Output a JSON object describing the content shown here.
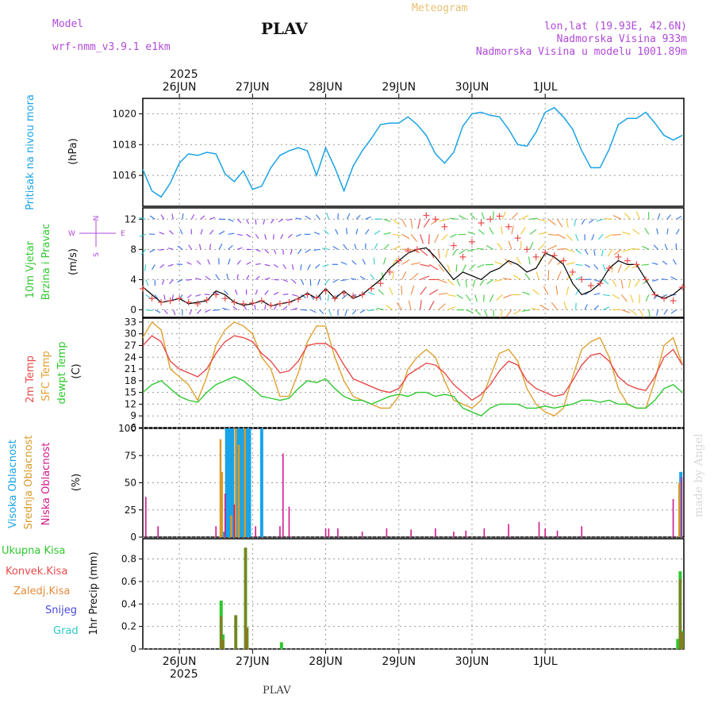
{
  "header": {
    "model_label": "Model",
    "model_name": "wrf-nmm_v3.9.1 e1km",
    "station": "PLAV",
    "meteogram": "Meteogram",
    "lonlat": "lon,lat (19.93E, 42.6N)",
    "altitude": "Nadmorska Visina 933m",
    "altitude_model": "Nadmorska Visina u modelu 1001.89m",
    "footer_station": "PLAV",
    "watermark": "made by Angel"
  },
  "colors": {
    "pressure": "#1aa3e6",
    "temp2m": "#e84b4b",
    "sfc_temp": "#e0a030",
    "dewpoint": "#2ec82e",
    "high_cloud": "#1aa3e6",
    "mid_cloud": "#d99a2a",
    "low_cloud": "#d01a8c",
    "total_precip": "#2ec82e",
    "conv_precip": "#e84b4b",
    "frozen_precip": "#e88a3a",
    "snow": "#4a4ad8",
    "hail": "#30c8c8",
    "label_purple": "#b04ad8"
  },
  "time_axis": {
    "year": "2025",
    "days": [
      "26JUN",
      "27JUN",
      "28JUN",
      "29JUN",
      "30JUN",
      "1JUL"
    ]
  },
  "chart_data": [
    {
      "type": "line",
      "name": "pressure",
      "ylabel": "(hPa)",
      "side_labels": [
        "Pritisak na nivou mora"
      ],
      "ylim": [
        1014,
        1021
      ],
      "yticks": [
        "1016",
        "1018",
        "1020"
      ],
      "x_hours": [
        0,
        3,
        6,
        9,
        12,
        15,
        18,
        21,
        24,
        27,
        30,
        33,
        36,
        39,
        42,
        45,
        48,
        51,
        54,
        57,
        60,
        63,
        66,
        69,
        72,
        75,
        78,
        81,
        84,
        87,
        90,
        93,
        96,
        99,
        102,
        105,
        108,
        111,
        114,
        117,
        120,
        123,
        126,
        129,
        132,
        135,
        138,
        141,
        144,
        147,
        150,
        153,
        156,
        159,
        162,
        165,
        168,
        171,
        174,
        177
      ],
      "values": [
        1016.4,
        1015.0,
        1014.6,
        1015.5,
        1016.8,
        1017.4,
        1017.3,
        1017.5,
        1017.4,
        1016.1,
        1015.6,
        1016.3,
        1015.1,
        1015.3,
        1016.5,
        1017.3,
        1017.6,
        1017.8,
        1017.6,
        1016.0,
        1017.8,
        1016.5,
        1015.0,
        1016.6,
        1017.6,
        1018.4,
        1019.3,
        1019.4,
        1019.4,
        1019.8,
        1019.3,
        1018.6,
        1017.4,
        1016.8,
        1017.5,
        1019.2,
        1020.0,
        1020.1,
        1019.9,
        1019.8,
        1019.0,
        1018.0,
        1017.9,
        1018.8,
        1020.1,
        1020.4,
        1019.8,
        1019.0,
        1017.6,
        1016.5,
        1016.5,
        1017.7,
        1019.3,
        1019.7,
        1019.7,
        1020.1,
        1019.4,
        1018.6,
        1018.3,
        1018.6
      ]
    },
    {
      "type": "line",
      "name": "wind",
      "ylabel": "(m/s)",
      "side_labels": [
        "10m Vjetar",
        "Brzina i Pravac"
      ],
      "compass": [
        "N",
        "W",
        "E",
        "S"
      ],
      "ylim": [
        -1,
        13.5
      ],
      "yticks": [
        "0",
        "4",
        "8",
        "12"
      ],
      "x_hours": [
        0,
        3,
        6,
        9,
        12,
        15,
        18,
        21,
        24,
        27,
        30,
        33,
        36,
        39,
        42,
        45,
        48,
        51,
        54,
        57,
        60,
        63,
        66,
        69,
        72,
        75,
        78,
        81,
        84,
        87,
        90,
        93,
        96,
        99,
        102,
        105,
        108,
        111,
        114,
        117,
        120,
        123,
        126,
        129,
        132,
        135,
        138,
        141,
        144,
        147,
        150,
        153,
        156,
        159,
        162,
        165,
        168,
        171,
        174,
        177
      ],
      "values": [
        3.0,
        2.0,
        1.0,
        1.2,
        1.5,
        0.8,
        1.0,
        1.2,
        2.5,
        2.0,
        1.0,
        0.6,
        0.8,
        1.2,
        0.5,
        0.8,
        1.0,
        1.5,
        2.2,
        1.5,
        2.8,
        1.5,
        2.5,
        1.5,
        2.0,
        3.0,
        4.0,
        5.5,
        6.5,
        7.5,
        8.0,
        8.2,
        7.0,
        5.5,
        4.0,
        5.0,
        4.5,
        4.0,
        5.0,
        5.5,
        6.5,
        6.0,
        5.0,
        5.5,
        7.5,
        7.0,
        6.0,
        3.5,
        2.0,
        2.5,
        3.5,
        5.5,
        6.5,
        6.0,
        6.0,
        4.0,
        2.0,
        1.5,
        2.0,
        3.0
      ],
      "gust_values": [
        2.8,
        1.5,
        1.0,
        1.2,
        1.5,
        1.0,
        0.8,
        1.3,
        2.0,
        1.5,
        1.0,
        0.8,
        0.9,
        1.2,
        0.6,
        0.8,
        1.0,
        1.4,
        2.0,
        1.6,
        2.5,
        1.5,
        2.2,
        1.8,
        2.0,
        2.8,
        3.5,
        5.0,
        6.5,
        7.8,
        8.0,
        12.5,
        12.0,
        11.0,
        8.5,
        7.0,
        9.0,
        11.5,
        12.0,
        12.4,
        11.0,
        9.5,
        8.0,
        7.0,
        7.6,
        7.2,
        6.5,
        5.0,
        4.0,
        3.2,
        3.5,
        5.5,
        7.0,
        6.5,
        6.0,
        4.0,
        2.0,
        1.5,
        1.2,
        3.0
      ]
    },
    {
      "type": "line",
      "name": "temperature",
      "ylabel": "(C)",
      "side_labels": [
        "2m Temp",
        "SFC Temp",
        "dewpt Temp"
      ],
      "ylim": [
        6,
        34
      ],
      "yticks": [
        "6",
        "9",
        "12",
        "15",
        "18",
        "21",
        "24",
        "27",
        "30",
        "33"
      ],
      "x_hours": [
        0,
        3,
        6,
        9,
        12,
        15,
        18,
        21,
        24,
        27,
        30,
        33,
        36,
        39,
        42,
        45,
        48,
        51,
        54,
        57,
        60,
        63,
        66,
        69,
        72,
        75,
        78,
        81,
        84,
        87,
        90,
        93,
        96,
        99,
        102,
        105,
        108,
        111,
        114,
        117,
        120,
        123,
        126,
        129,
        132,
        135,
        138,
        141,
        144,
        147,
        150,
        153,
        156,
        159,
        162,
        165,
        168,
        171,
        174,
        177
      ],
      "series": [
        {
          "name": "2m Temp",
          "values": [
            27.0,
            29.5,
            28.0,
            23.0,
            21.0,
            20.0,
            19.0,
            21.0,
            25.0,
            28.0,
            29.5,
            29.0,
            28.0,
            25.0,
            23.0,
            20.0,
            20.5,
            23.0,
            27.0,
            27.5,
            27.5,
            26.0,
            22.0,
            18.5,
            17.5,
            16.5,
            15.5,
            15.0,
            16.0,
            19.5,
            21.0,
            22.5,
            22.0,
            20.0,
            17.0,
            15.0,
            13.0,
            14.5,
            17.0,
            20.5,
            23.0,
            22.0,
            18.0,
            16.0,
            15.0,
            14.0,
            14.5,
            18.0,
            22.0,
            24.5,
            25.0,
            23.0,
            19.0,
            17.0,
            16.0,
            15.5,
            19.0,
            24.0,
            26.0,
            22.0
          ]
        },
        {
          "name": "SFC Temp",
          "values": [
            29.0,
            33.0,
            31.0,
            21.0,
            19.0,
            17.0,
            13.0,
            19.0,
            27.0,
            31.0,
            33.0,
            32.0,
            30.0,
            24.0,
            21.0,
            14.0,
            14.0,
            20.0,
            28.0,
            32.0,
            32.0,
            24.0,
            18.0,
            14.0,
            13.0,
            12.0,
            11.0,
            11.0,
            14.0,
            21.0,
            24.0,
            26.0,
            24.0,
            18.0,
            13.0,
            12.0,
            11.0,
            13.0,
            19.0,
            25.0,
            26.0,
            23.0,
            16.0,
            12.0,
            10.0,
            9.0,
            11.0,
            19.0,
            26.0,
            28.0,
            29.0,
            24.0,
            16.0,
            12.0,
            11.0,
            11.0,
            18.0,
            27.0,
            29.0,
            22.0
          ]
        },
        {
          "name": "dewpt Temp",
          "values": [
            15.0,
            17.0,
            18.0,
            16.0,
            14.0,
            13.0,
            12.5,
            15.0,
            17.0,
            18.0,
            19.0,
            18.0,
            16.0,
            14.0,
            13.5,
            13.0,
            13.5,
            16.0,
            18.0,
            17.5,
            18.5,
            16.0,
            14.0,
            13.0,
            13.0,
            12.0,
            13.0,
            14.0,
            14.5,
            14.0,
            15.0,
            15.0,
            14.0,
            14.5,
            14.0,
            11.0,
            10.0,
            9.0,
            11.0,
            12.0,
            12.0,
            12.0,
            11.0,
            11.0,
            11.5,
            11.0,
            11.5,
            12.0,
            13.0,
            13.0,
            12.5,
            13.0,
            12.0,
            12.0,
            11.0,
            11.0,
            13.0,
            16.0,
            17.0,
            15.0
          ]
        }
      ]
    },
    {
      "type": "bar",
      "name": "cloud_cover",
      "ylabel": "(%)",
      "side_labels": [
        "Visoka Oblacnost",
        "Srednja Oblacnost",
        "Niska Oblacnost"
      ],
      "ylim": [
        0,
        100
      ],
      "yticks": [
        "0",
        "25",
        "50",
        "75",
        "100"
      ],
      "series": [
        {
          "name": "Visoka Oblacnost",
          "bars": [
            [
              26.5,
              5
            ],
            [
              27.5,
              100
            ],
            [
              28.0,
              100
            ],
            [
              28.5,
              100
            ],
            [
              29.5,
              100
            ],
            [
              31.0,
              100
            ],
            [
              32.0,
              100
            ],
            [
              33.0,
              100
            ],
            [
              34.0,
              100
            ],
            [
              35.0,
              100
            ],
            [
              39.0,
              100
            ],
            [
              176.5,
              60
            ]
          ]
        },
        {
          "name": "Srednja Oblacnost",
          "bars": [
            [
              25.5,
              90
            ],
            [
              26.0,
              60
            ],
            [
              29.0,
              20
            ],
            [
              30.5,
              100
            ],
            [
              31.5,
              85
            ],
            [
              33.5,
              100
            ],
            [
              176.0,
              50
            ]
          ]
        },
        {
          "name": "Niska Oblacnost",
          "bars": [
            [
              1,
              37
            ],
            [
              5,
              10
            ],
            [
              24,
              10
            ],
            [
              27.0,
              40
            ],
            [
              30.0,
              30
            ],
            [
              37.0,
              10
            ],
            [
              45,
              10
            ],
            [
              46,
              77
            ],
            [
              48,
              28
            ],
            [
              60,
              8
            ],
            [
              61,
              8
            ],
            [
              64,
              8
            ],
            [
              72,
              5
            ],
            [
              80,
              8
            ],
            [
              88,
              7
            ],
            [
              96,
              8
            ],
            [
              102,
              5
            ],
            [
              106,
              6
            ],
            [
              112,
              8
            ],
            [
              120,
              12
            ],
            [
              130,
              14
            ],
            [
              132,
              8
            ],
            [
              136,
              6
            ],
            [
              144,
              10
            ],
            [
              174,
              35
            ],
            [
              176.8,
              55
            ]
          ]
        }
      ]
    },
    {
      "type": "bar",
      "name": "precipitation",
      "ylabel": "1hr Precip (mm)",
      "side_labels": [
        "Ukupna Kisa",
        "Konvek.Kisa",
        "Zaledj.Kisa",
        "Snijeg",
        "Grad"
      ],
      "ylim": [
        0,
        0.98
      ],
      "yticks": [
        "0",
        "0.2",
        "0.4",
        "0.6",
        "0.8"
      ],
      "series": [
        {
          "name": "Ukupna Kisa",
          "bars": [
            [
              25.7,
              0.43
            ],
            [
              26.3,
              0.13
            ],
            [
              30.5,
              0.3
            ],
            [
              33.7,
              0.9
            ],
            [
              34.2,
              0.19
            ],
            [
              45.5,
              0.06
            ],
            [
              175.5,
              0.09
            ],
            [
              176.3,
              0.69
            ],
            [
              177.0,
              0.16
            ]
          ]
        },
        {
          "name": "Konvek.Kisa",
          "bars": [
            [
              25.7,
              0.29
            ],
            [
              26.3,
              0.08
            ],
            [
              30.5,
              0.3
            ],
            [
              33.7,
              0.9
            ],
            [
              34.2,
              0.19
            ],
            [
              176.3,
              0.62
            ],
            [
              177.0,
              0.15
            ]
          ]
        }
      ]
    }
  ]
}
